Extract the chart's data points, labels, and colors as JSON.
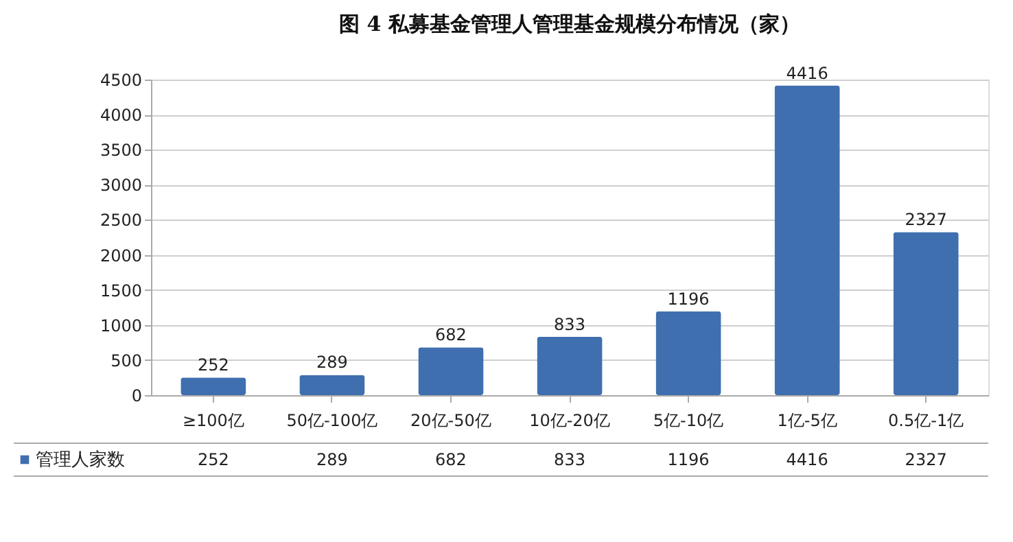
{
  "chart_data": {
    "type": "bar",
    "title": "图 4  私募基金管理人管理基金规模分布情况（家）",
    "categories": [
      "≥100亿",
      "50亿-100亿",
      "20亿-50亿",
      "10亿-20亿",
      "5亿-10亿",
      "1亿-5亿",
      "0.5亿-1亿"
    ],
    "series": [
      {
        "name": "管理人家数",
        "color": "#3f6fae",
        "values": [
          252,
          289,
          682,
          833,
          1196,
          4416,
          2327
        ],
        "value_labels": [
          "252",
          "289",
          "682",
          "833",
          "1196",
          "4416",
          "2327"
        ]
      }
    ],
    "ylim": [
      0,
      4500
    ],
    "yticks": [
      0,
      500,
      1000,
      1500,
      2000,
      2500,
      3000,
      3500,
      4000,
      4500
    ],
    "grid": "y",
    "annotations": [
      "252",
      "289",
      "682",
      "833",
      "1196",
      "4416",
      "2327"
    ]
  }
}
